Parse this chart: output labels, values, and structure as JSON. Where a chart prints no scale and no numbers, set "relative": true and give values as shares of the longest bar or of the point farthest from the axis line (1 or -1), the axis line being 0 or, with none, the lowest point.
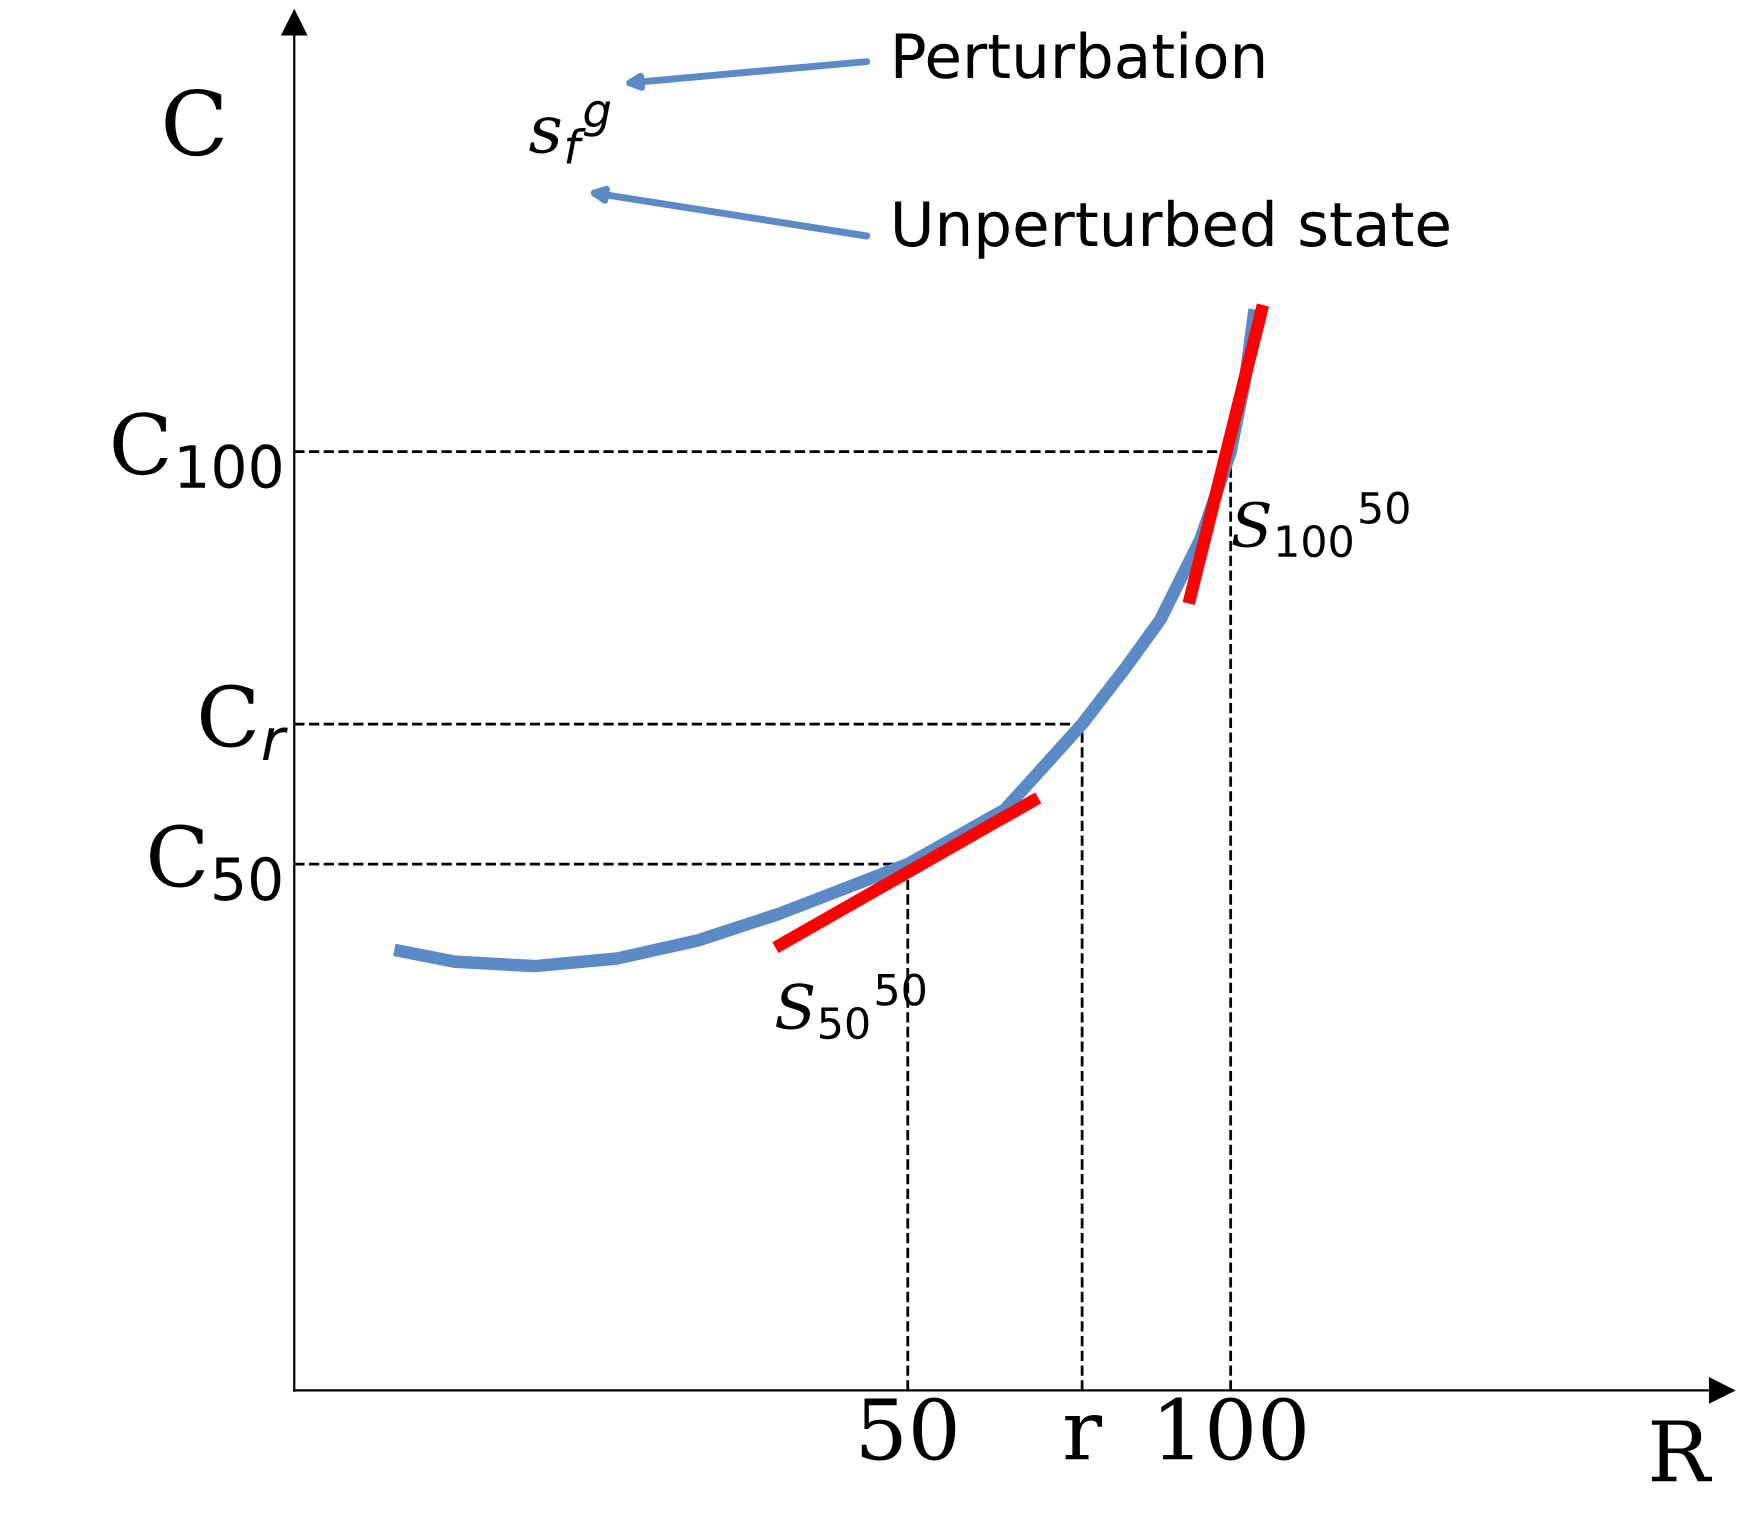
{
  "chart_data": {
    "type": "line",
    "relative": true,
    "xlabel": "R",
    "ylabel": "C",
    "xlim": [
      -45,
      176
    ],
    "xticks": [
      50,
      {
        "value": 77,
        "label": "r"
      },
      100
    ],
    "series": [
      {
        "color": "#5b8ac6",
        "x": [
          -29.5,
          -20,
          -7.8,
          5,
          17.7,
          30,
          50,
          65,
          77,
          84,
          89.1,
          95.3,
          98,
          100,
          102.2,
          103.7
        ],
        "values": [
          0.406,
          0.395,
          0.391,
          0.398,
          0.415,
          0.439,
          0.485,
          0.535,
          0.614,
          0.668,
          0.71,
          0.784,
          0.83,
          0.865,
          0.93,
          0.996
        ]
      },
      {
        "color": "#ff0000",
        "x": [
          29.5,
          70.2
        ],
        "values": [
          0.408,
          0.546
        ]
      },
      {
        "color": "#ff0000",
        "x": [
          93.5,
          105
        ],
        "values": [
          0.725,
          1.0
        ]
      }
    ],
    "ref_lines": [
      {
        "axis": "y",
        "value": 0.485,
        "label": "C$_{50}$",
        "line_style": "dashed"
      },
      {
        "axis": "y",
        "value": 0.614,
        "label": "C$_{r}$",
        "line_style": "dashed"
      },
      {
        "axis": "y",
        "value": 0.865,
        "label": "C$_{100}$",
        "line_style": "dashed"
      },
      {
        "axis": "x",
        "value": 50,
        "line_style": "dashed"
      },
      {
        "axis": "x",
        "value": 77,
        "line_style": "dashed"
      },
      {
        "axis": "x",
        "value": 100,
        "line_style": "dashed"
      }
    ],
    "annotations": [
      {
        "text": "S$_{50}$$^{50}$",
        "x": 50,
        "y": 0.485
      },
      {
        "text": "S$_{100}$$^{50}$",
        "x": 100,
        "y": 0.865
      },
      "s$_{f}$$^{g}$",
      "Perturbation",
      "Unperturbed state"
    ],
    "legend": false,
    "grid": false,
    "line_style": "solid",
    "marker": "none"
  }
}
